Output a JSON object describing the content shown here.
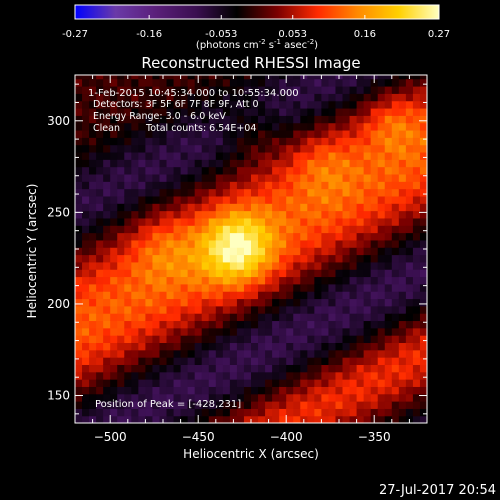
{
  "colorbar": {
    "tick_labels": [
      "-0.27",
      "-0.16",
      "-0.053",
      "0.053",
      "0.16",
      "0.27"
    ],
    "tick_values": [
      -0.27,
      -0.16,
      -0.053,
      0.053,
      0.16,
      0.27
    ],
    "range": [
      -0.27,
      0.27
    ],
    "unit_main": "(photons cm",
    "unit_exp1": "-2",
    "unit_mid": " s",
    "unit_exp2": "-1",
    "unit_end": " asec",
    "unit_exp3": "-2",
    "unit_close": ")"
  },
  "chart_data": {
    "type": "heatmap",
    "title": "Reconstructed RHESSI Image",
    "xlabel": "Heliocentric X (arcsec)",
    "ylabel": "Heliocentric Y (arcsec)",
    "xlim": [
      -520,
      -320
    ],
    "ylim": [
      135,
      325
    ],
    "x_ticks": [
      -500,
      -450,
      -400,
      -350
    ],
    "y_ticks": [
      150,
      200,
      250,
      300
    ],
    "x_tick_labels": [
      "−500",
      "−450",
      "−400",
      "−350"
    ],
    "y_tick_labels": [
      "150",
      "200",
      "250",
      "300"
    ],
    "colormap": "red-temperature",
    "colormap_stops": [
      "#0000ff",
      "#6a3aa8",
      "#5a1f7a",
      "#3a0f50",
      "#000000",
      "#7a0000",
      "#ff2a00",
      "#ff8a00",
      "#ffd000",
      "#ffffc0"
    ],
    "peak_position": [
      -428,
      231
    ],
    "peak_value": 0.27,
    "annotations": {
      "time_range": "1-Feb-2015 10:45:34.000 to 10:55:34.000",
      "detectors": "Detectors: 3F 5F 6F 7F 8F 9F, Att 0",
      "energy_range": "Energy Range: 3.0 - 6.0 keV",
      "method": "Clean",
      "total_counts": "Total counts: 6.54E+04",
      "peak_text": "Position of Peak = [-428,231]"
    }
  },
  "footer": {
    "date": "27-Jul-2017 20:54"
  }
}
